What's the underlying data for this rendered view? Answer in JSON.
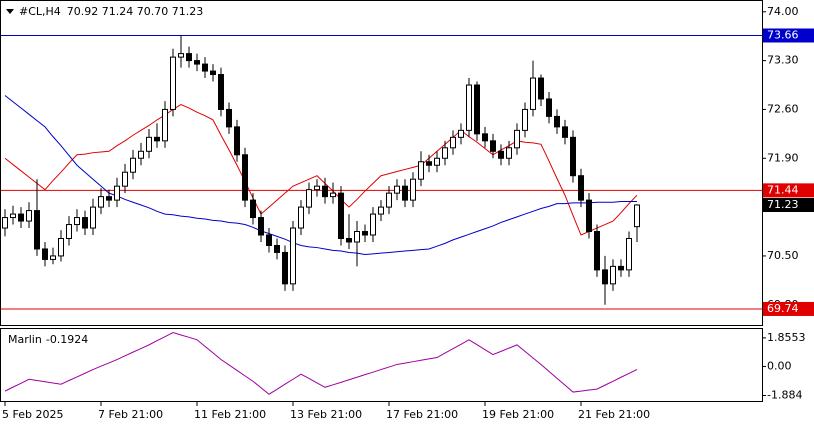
{
  "chart_data": [
    {
      "type": "candlestick",
      "title": "#CL,H4",
      "subtitle": "70.92 71.24 70.70 71.23",
      "categories": [
        "5 Feb 2025",
        null,
        null,
        null,
        null,
        null,
        null,
        null,
        null,
        null,
        null,
        null,
        "7 Feb 21:00",
        null,
        null,
        null,
        null,
        null,
        null,
        null,
        null,
        null,
        null,
        null,
        "11 Feb 21:00",
        null,
        null,
        null,
        null,
        null,
        null,
        null,
        null,
        null,
        null,
        null,
        "13 Feb 21:00",
        null,
        null,
        null,
        null,
        null,
        null,
        null,
        null,
        null,
        null,
        null,
        "17 Feb 21:00",
        null,
        null,
        null,
        null,
        null,
        null,
        null,
        null,
        null,
        null,
        null,
        "19 Feb 21:00",
        null,
        null,
        null,
        null,
        null,
        null,
        null,
        null,
        null,
        null,
        null,
        "21 Feb 21:00",
        null,
        null,
        null,
        null,
        null,
        null,
        null
      ],
      "open": [
        70.9,
        71.05,
        71.1,
        71.0,
        71.15,
        70.6,
        70.45,
        70.5,
        70.75,
        70.95,
        71.05,
        70.9,
        71.2,
        71.35,
        71.3,
        71.5,
        71.7,
        71.9,
        72.0,
        72.2,
        72.15,
        72.6,
        73.35,
        73.4,
        73.3,
        73.25,
        73.15,
        73.1,
        72.6,
        72.35,
        71.95,
        71.3,
        71.05,
        70.8,
        70.65,
        70.55,
        70.1,
        70.9,
        71.2,
        71.45,
        71.5,
        71.35,
        71.4,
        70.75,
        70.7,
        70.85,
        70.8,
        71.1,
        71.2,
        71.4,
        71.5,
        71.3,
        71.6,
        71.85,
        71.8,
        71.9,
        72.05,
        72.2,
        72.3,
        72.95,
        72.25,
        72.15,
        72.0,
        71.9,
        72.05,
        72.3,
        72.6,
        73.05,
        72.75,
        72.5,
        72.35,
        72.2,
        71.65,
        71.3,
        70.85,
        70.3,
        70.1,
        70.35,
        70.3,
        70.92
      ],
      "high": [
        71.17,
        71.22,
        71.2,
        71.27,
        71.6,
        70.7,
        70.62,
        70.87,
        71.07,
        71.17,
        71.15,
        71.32,
        71.47,
        71.45,
        71.62,
        71.82,
        72.02,
        72.12,
        72.32,
        72.4,
        72.72,
        73.47,
        73.66,
        73.5,
        73.4,
        73.35,
        73.25,
        73.2,
        72.7,
        72.45,
        72.05,
        71.4,
        71.15,
        70.9,
        70.75,
        70.65,
        71.0,
        71.3,
        71.55,
        71.6,
        71.62,
        71.55,
        71.5,
        71.1,
        71.0,
        70.95,
        71.2,
        71.3,
        71.5,
        71.6,
        71.6,
        71.7,
        72.0,
        71.95,
        72.0,
        72.15,
        72.3,
        72.4,
        73.05,
        73.0,
        72.35,
        72.25,
        72.1,
        72.15,
        72.4,
        72.7,
        73.3,
        73.1,
        72.85,
        72.6,
        72.45,
        72.3,
        71.75,
        71.4,
        70.95,
        70.5,
        70.45,
        70.45,
        70.85,
        71.24
      ],
      "low": [
        70.78,
        70.95,
        70.9,
        70.9,
        70.5,
        70.35,
        70.38,
        70.42,
        70.65,
        70.85,
        70.8,
        70.8,
        71.1,
        71.2,
        71.2,
        71.4,
        71.6,
        71.8,
        71.9,
        72.05,
        72.05,
        72.5,
        73.2,
        73.2,
        73.15,
        73.05,
        73.0,
        72.5,
        72.25,
        71.85,
        71.2,
        70.95,
        70.7,
        70.55,
        70.45,
        70.0,
        70.0,
        70.8,
        71.1,
        71.35,
        71.25,
        71.25,
        70.65,
        70.6,
        70.35,
        70.7,
        70.7,
        71.0,
        71.1,
        71.3,
        71.2,
        71.2,
        71.5,
        71.7,
        71.7,
        71.8,
        71.95,
        72.1,
        72.2,
        72.15,
        72.05,
        71.9,
        71.8,
        71.8,
        71.95,
        72.2,
        72.5,
        72.65,
        72.4,
        72.25,
        72.1,
        71.55,
        71.2,
        70.75,
        70.2,
        69.8,
        70.0,
        70.2,
        70.2,
        70.7
      ],
      "close": [
        71.05,
        71.1,
        71.0,
        71.15,
        70.6,
        70.45,
        70.5,
        70.75,
        70.95,
        71.05,
        70.9,
        71.2,
        71.35,
        71.3,
        71.5,
        71.7,
        71.9,
        72.0,
        72.2,
        72.15,
        72.6,
        73.35,
        73.4,
        73.3,
        73.25,
        73.15,
        73.1,
        72.6,
        72.35,
        71.95,
        71.3,
        71.05,
        70.8,
        70.65,
        70.55,
        70.1,
        70.9,
        71.2,
        71.45,
        71.5,
        71.35,
        71.4,
        70.75,
        70.7,
        70.85,
        70.8,
        71.1,
        71.2,
        71.4,
        71.5,
        71.3,
        71.6,
        71.85,
        71.8,
        71.9,
        72.05,
        72.2,
        72.3,
        72.95,
        72.25,
        72.15,
        72.0,
        71.9,
        72.05,
        72.3,
        72.6,
        73.05,
        72.75,
        72.5,
        72.35,
        72.2,
        71.65,
        71.3,
        70.85,
        70.3,
        70.1,
        70.35,
        70.3,
        70.75,
        71.23
      ],
      "lines": [
        {
          "color": "#e00000",
          "values": [
            71.9,
            71.81,
            71.72,
            71.63,
            71.54,
            71.45,
            71.58,
            71.7,
            71.83,
            71.95,
            71.96,
            71.98,
            71.99,
            72.0,
            72.08,
            72.15,
            72.23,
            72.3,
            72.37,
            72.45,
            72.52,
            72.6,
            72.67,
            72.62,
            72.56,
            72.51,
            72.45,
            72.23,
            72.02,
            71.8,
            71.57,
            71.33,
            71.1,
            71.2,
            71.3,
            71.4,
            71.5,
            71.55,
            71.6,
            71.65,
            71.54,
            71.43,
            71.31,
            71.2,
            71.31,
            71.43,
            71.54,
            71.65,
            71.68,
            71.71,
            71.74,
            71.77,
            71.8,
            71.9,
            72.0,
            72.1,
            72.2,
            72.3,
            72.21,
            72.13,
            72.04,
            71.95,
            72.02,
            72.08,
            72.15,
            72.13,
            72.12,
            72.1,
            71.86,
            71.61,
            71.37,
            71.08,
            70.8,
            70.85,
            70.9,
            70.95,
            71.0,
            71.12,
            71.25,
            71.37
          ]
        },
        {
          "color": "#0000cc",
          "values": [
            72.8,
            72.71,
            72.62,
            72.53,
            72.44,
            72.35,
            72.21,
            72.08,
            71.94,
            71.8,
            71.7,
            71.6,
            71.5,
            71.4,
            71.36,
            71.31,
            71.27,
            71.23,
            71.19,
            71.14,
            71.1,
            71.09,
            71.07,
            71.06,
            71.04,
            71.03,
            71.01,
            71.0,
            70.98,
            70.97,
            70.95,
            70.91,
            70.86,
            70.82,
            70.78,
            70.74,
            70.69,
            70.65,
            70.63,
            70.62,
            70.6,
            70.58,
            70.57,
            70.55,
            70.54,
            70.52,
            70.53,
            70.54,
            70.55,
            70.56,
            70.57,
            70.58,
            70.59,
            70.6,
            70.64,
            70.68,
            70.73,
            70.77,
            70.81,
            70.85,
            70.89,
            70.93,
            70.98,
            71.02,
            71.06,
            71.1,
            71.14,
            71.18,
            71.21,
            71.25,
            71.25,
            71.26,
            71.26,
            71.26,
            71.27,
            71.27,
            71.27,
            71.28,
            71.28,
            71.28
          ]
        }
      ],
      "levels": [
        {
          "value": 73.66,
          "color": "#0000cc"
        },
        {
          "value": 71.44,
          "color": "#e00000"
        },
        {
          "value": 69.74,
          "color": "#e00000"
        }
      ],
      "last_price": 71.23,
      "ylim": [
        69.51,
        74.14
      ],
      "yticks": [
        {
          "value": 74,
          "label": "74.00"
        },
        {
          "value": 73.3,
          "label": "73.30"
        },
        {
          "value": 72.6,
          "label": "72.60"
        },
        {
          "value": 71.9,
          "label": "71.90"
        },
        {
          "value": 70.5,
          "label": "70.50"
        },
        {
          "value": 69.8,
          "label": "69.80"
        }
      ]
    },
    {
      "type": "line",
      "title": "Marlin",
      "current": -0.1924,
      "series": [
        {
          "color": "#a000a0",
          "values": [
            -1.6,
            -1.34,
            -1.09,
            -0.83,
            -0.91,
            -0.99,
            -1.07,
            -1.15,
            -0.91,
            -0.68,
            -0.44,
            -0.2,
            0.02,
            0.23,
            0.45,
            0.69,
            0.93,
            1.16,
            1.4,
            1.67,
            1.93,
            2.2,
            2.04,
            1.89,
            1.73,
            1.3,
            0.88,
            0.45,
            0.1,
            -0.26,
            -0.61,
            -0.96,
            -1.38,
            -1.8,
            -1.48,
            -1.15,
            -0.83,
            -0.5,
            -0.78,
            -1.07,
            -1.35,
            -1.19,
            -1.03,
            -0.86,
            -0.7,
            -0.53,
            -0.37,
            -0.2,
            -0.04,
            0.13,
            0.22,
            0.31,
            0.4,
            0.49,
            0.58,
            0.87,
            1.15,
            1.44,
            1.73,
            1.41,
            1.09,
            0.77,
            0.98,
            1.19,
            1.4,
            0.98,
            0.55,
            0.13,
            -0.32,
            -0.77,
            -1.21,
            -1.66,
            -1.6,
            -1.53,
            -1.47,
            -1.21,
            -0.96,
            -0.7,
            -0.45,
            -0.19
          ]
        }
      ],
      "ylim": [
        -2.24,
        2.43
      ],
      "yticks": [
        1.8553,
        {
          "value": 0,
          "label": "0.00"
        },
        -1.884
      ]
    }
  ]
}
